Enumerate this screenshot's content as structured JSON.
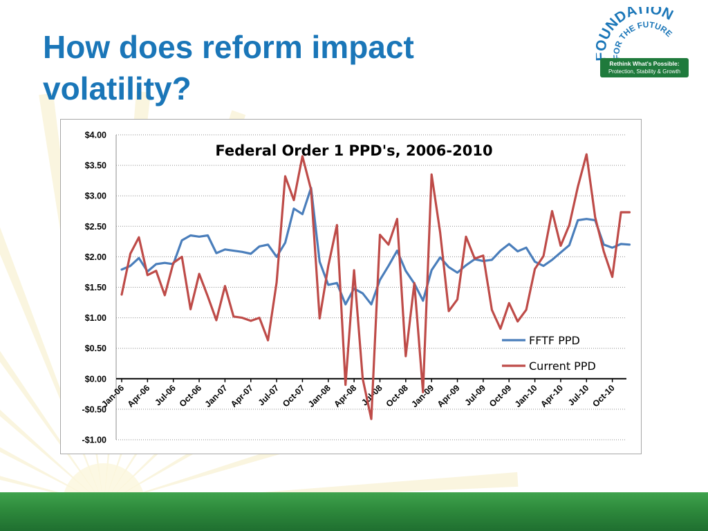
{
  "slide": {
    "title_line1": "How does reform impact",
    "title_line2": "volatility?"
  },
  "logo": {
    "word1": "FOUNDATION",
    "word2": "FOR THE FUTURE",
    "tagline1": "Rethink What's Possible:",
    "tagline2": "Protection, Stability & Growth",
    "colors": {
      "blue": "#1a76b8",
      "green": "#1f7a3c"
    }
  },
  "theme": {
    "title_color": "#1a76b8",
    "band_color": "#2e8a3c",
    "ray_color": "#f6edc4"
  },
  "chart_data": {
    "type": "line",
    "title": "Federal Order 1 PPD's, 2006-2010",
    "xlabel": "",
    "ylabel": "",
    "ylim": [
      -1.0,
      4.0
    ],
    "y_ticks": [
      4.0,
      3.5,
      3.0,
      2.5,
      2.0,
      1.5,
      1.0,
      0.5,
      0.0,
      -0.5,
      -1.0
    ],
    "y_tick_labels": [
      "$4.00",
      "$3.50",
      "$3.00",
      "$2.50",
      "$2.00",
      "$1.50",
      "$1.00",
      "$0.50",
      "$0.00",
      "-$0.50",
      "-$1.00"
    ],
    "x_tick_labels": [
      "Jan-06",
      "Apr-06",
      "Jul-06",
      "Oct-06",
      "Jan-07",
      "Apr-07",
      "Jul-07",
      "Oct-07",
      "Jan-08",
      "Apr-08",
      "Jul-08",
      "Oct-08",
      "Jan-09",
      "Apr-09",
      "Jul-09",
      "Oct-09",
      "Jan-10",
      "Apr-10",
      "Jul-10",
      "Oct-10"
    ],
    "x_tick_every": 3,
    "grid": "horizontal dotted",
    "legend_position": "bottom-right",
    "x": [
      "Jan-06",
      "Feb-06",
      "Mar-06",
      "Apr-06",
      "May-06",
      "Jun-06",
      "Jul-06",
      "Aug-06",
      "Sep-06",
      "Oct-06",
      "Nov-06",
      "Dec-06",
      "Jan-07",
      "Feb-07",
      "Mar-07",
      "Apr-07",
      "May-07",
      "Jun-07",
      "Jul-07",
      "Aug-07",
      "Sep-07",
      "Oct-07",
      "Nov-07",
      "Dec-07",
      "Jan-08",
      "Feb-08",
      "Mar-08",
      "Apr-08",
      "May-08",
      "Jun-08",
      "Jul-08",
      "Aug-08",
      "Sep-08",
      "Oct-08",
      "Nov-08",
      "Dec-08",
      "Jan-09",
      "Feb-09",
      "Mar-09",
      "Apr-09",
      "May-09",
      "Jun-09",
      "Jul-09",
      "Aug-09",
      "Sep-09",
      "Oct-09",
      "Nov-09",
      "Dec-09",
      "Jan-10",
      "Feb-10",
      "Mar-10",
      "Apr-10",
      "May-10",
      "Jun-10",
      "Jul-10",
      "Aug-10",
      "Sep-10",
      "Oct-10",
      "Nov-10",
      "Dec-10"
    ],
    "series": [
      {
        "name": "FFTF PPD",
        "color": "#4a7ebb",
        "values": [
          1.79,
          1.85,
          1.98,
          1.76,
          1.88,
          1.9,
          1.88,
          2.27,
          2.35,
          2.33,
          2.35,
          2.06,
          2.12,
          2.1,
          2.08,
          2.05,
          2.17,
          2.2,
          2.0,
          2.23,
          2.79,
          2.7,
          3.13,
          1.92,
          1.54,
          1.57,
          1.22,
          1.48,
          1.4,
          1.22,
          1.62,
          1.85,
          2.1,
          1.77,
          1.56,
          1.28,
          1.78,
          1.99,
          1.83,
          1.74,
          1.86,
          1.96,
          1.93,
          1.95,
          2.1,
          2.21,
          2.09,
          2.15,
          1.92,
          1.85,
          1.95,
          2.07,
          2.19,
          2.6,
          2.62,
          2.6,
          2.2,
          2.15,
          2.21,
          2.2
        ]
      },
      {
        "name": "Current PPD",
        "color": "#be4b48",
        "values": [
          1.38,
          2.05,
          2.32,
          1.7,
          1.77,
          1.37,
          1.9,
          2.0,
          1.14,
          1.72,
          1.35,
          0.96,
          1.52,
          1.02,
          1.0,
          0.95,
          1.0,
          0.63,
          1.58,
          3.32,
          2.93,
          3.65,
          3.1,
          0.99,
          1.85,
          2.52,
          -0.1,
          1.78,
          0.0,
          -0.66,
          2.36,
          2.2,
          2.62,
          0.37,
          1.57,
          -0.22,
          3.35,
          2.4,
          1.11,
          1.3,
          2.33,
          1.97,
          2.02,
          1.13,
          0.82,
          1.24,
          0.94,
          1.13,
          1.8,
          2.01,
          2.75,
          2.18,
          2.52,
          3.15,
          3.68,
          2.65,
          2.09,
          1.67,
          2.73,
          2.73
        ]
      }
    ]
  }
}
